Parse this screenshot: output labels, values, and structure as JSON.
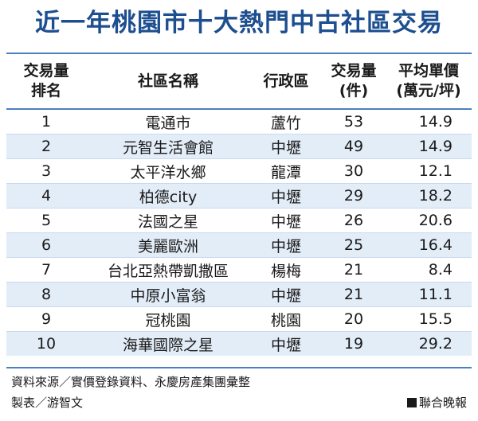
{
  "title": "近一年桃園市十大熱門中古社區交易",
  "table": {
    "headers": {
      "rank": [
        "交易量",
        "排名"
      ],
      "name": "社區名稱",
      "district": "行政區",
      "volume": [
        "交易量",
        "(件)"
      ],
      "price": [
        "平均單價",
        "(萬元/坪)"
      ]
    },
    "rows": [
      {
        "rank": "1",
        "name": "電通市",
        "district": "蘆竹",
        "volume": "53",
        "price": "14.9"
      },
      {
        "rank": "2",
        "name": "元智生活會館",
        "district": "中壢",
        "volume": "49",
        "price": "14.9"
      },
      {
        "rank": "3",
        "name": "太平洋水鄉",
        "district": "龍潭",
        "volume": "30",
        "price": "12.1"
      },
      {
        "rank": "4",
        "name": "柏德city",
        "district": "中壢",
        "volume": "29",
        "price": "18.2"
      },
      {
        "rank": "5",
        "name": "法國之星",
        "district": "中壢",
        "volume": "26",
        "price": "20.6"
      },
      {
        "rank": "6",
        "name": "美麗歐洲",
        "district": "中壢",
        "volume": "25",
        "price": "16.4"
      },
      {
        "rank": "7",
        "name": "台北亞熱帶凱撒區",
        "district": "楊梅",
        "volume": "21",
        "price": "8.4"
      },
      {
        "rank": "8",
        "name": "中原小富翁",
        "district": "中壢",
        "volume": "21",
        "price": "11.1"
      },
      {
        "rank": "9",
        "name": "冠桃園",
        "district": "桃園",
        "volume": "20",
        "price": "15.5"
      },
      {
        "rank": "10",
        "name": "海華國際之星",
        "district": "中壢",
        "volume": "19",
        "price": "29.2"
      }
    ]
  },
  "footer": {
    "source": "資料來源／實價登錄資料、永慶房產集團彙整",
    "maker": "製表／游智文",
    "brand": "聯合晚報"
  },
  "colors": {
    "title": "#1d4e8f",
    "rule": "#4a7fc0",
    "stripe": "#e3edf8"
  }
}
